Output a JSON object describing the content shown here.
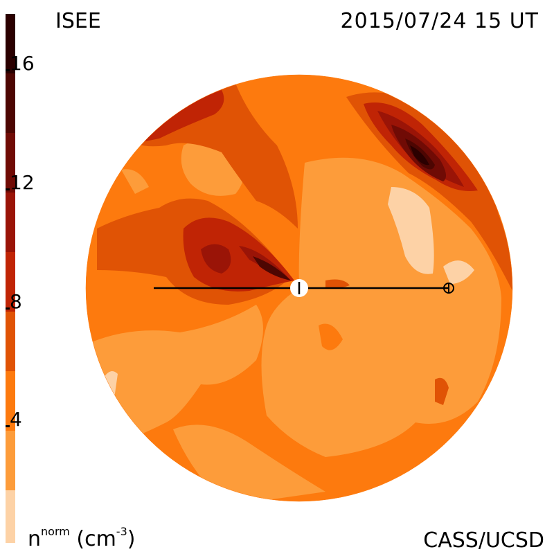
{
  "header": {
    "left_label": "ISEE",
    "datetime": "2015/07/24 15 UT"
  },
  "footer": {
    "right_label": "CASS/UCSD",
    "unit_main": "n",
    "unit_sup": "norm",
    "unit_paren_open": " (cm",
    "unit_paren_sup": "-3",
    "unit_paren_close": ")"
  },
  "colorbar": {
    "ticks": [
      {
        "label": "16",
        "value": 16
      },
      {
        "label": "12",
        "value": 12
      },
      {
        "label": "8",
        "value": 8
      },
      {
        "label": "4",
        "value": 4
      }
    ],
    "levels": [
      "#fdd2a6",
      "#fd9c3a",
      "#fd7a0e",
      "#e05305",
      "#c02405",
      "#9a1407",
      "#700b05",
      "#4d0602",
      "#2a0000"
    ],
    "range": [
      0,
      18
    ]
  },
  "markers": {
    "sun": "sun-symbol",
    "earth": "earth-symbol"
  }
}
